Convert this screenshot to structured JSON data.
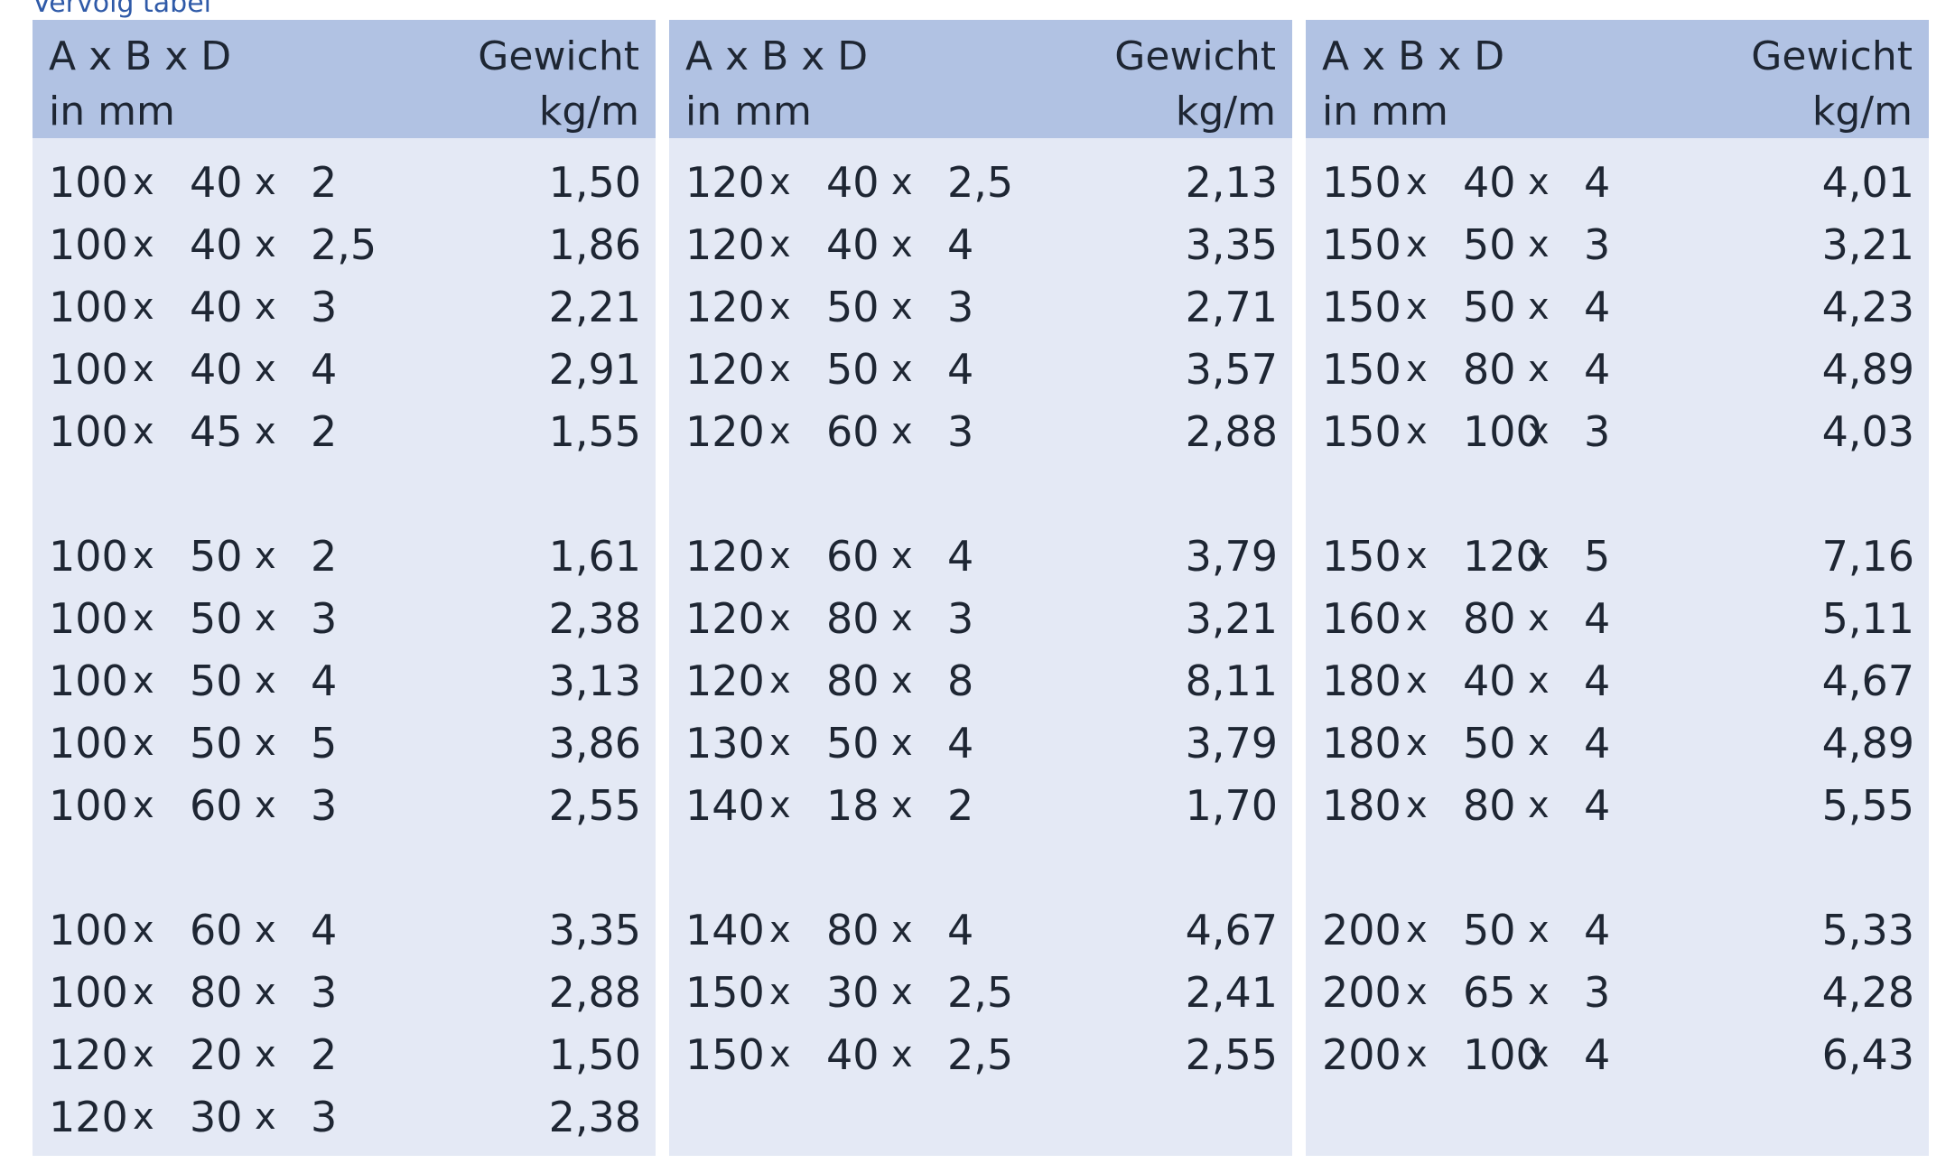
{
  "top_note": "Vervolg tabel",
  "bottom_note": "",
  "header": {
    "dim_line1": "A x B x D",
    "dim_line2": "in mm",
    "weight_line1": "Gewicht",
    "weight_line2": "kg/m"
  },
  "columns": [
    {
      "rows": [
        {
          "a": "100",
          "b": "40",
          "d": "2",
          "w": "1,50"
        },
        {
          "a": "100",
          "b": "40",
          "d": "2,5",
          "w": "1,86"
        },
        {
          "a": "100",
          "b": "40",
          "d": "3",
          "w": "2,21"
        },
        {
          "a": "100",
          "b": "40",
          "d": "4",
          "w": "2,91"
        },
        {
          "a": "100",
          "b": "45",
          "d": "2",
          "w": "1,55"
        },
        {
          "a": "100",
          "b": "50",
          "d": "2",
          "w": "1,61"
        },
        {
          "a": "100",
          "b": "50",
          "d": "3",
          "w": "2,38"
        },
        {
          "a": "100",
          "b": "50",
          "d": "4",
          "w": "3,13"
        },
        {
          "a": "100",
          "b": "50",
          "d": "5",
          "w": "3,86"
        },
        {
          "a": "100",
          "b": "60",
          "d": "3",
          "w": "2,55"
        },
        {
          "a": "100",
          "b": "60",
          "d": "4",
          "w": "3,35"
        },
        {
          "a": "100",
          "b": "80",
          "d": "3",
          "w": "2,88"
        },
        {
          "a": "120",
          "b": "20",
          "d": "2",
          "w": "1,50"
        },
        {
          "a": "120",
          "b": "30",
          "d": "3",
          "w": "2,38"
        }
      ]
    },
    {
      "rows": [
        {
          "a": "120",
          "b": "40",
          "d": "2,5",
          "w": "2,13"
        },
        {
          "a": "120",
          "b": "40",
          "d": "4",
          "w": "3,35"
        },
        {
          "a": "120",
          "b": "50",
          "d": "3",
          "w": "2,71"
        },
        {
          "a": "120",
          "b": "50",
          "d": "4",
          "w": "3,57"
        },
        {
          "a": "120",
          "b": "60",
          "d": "3",
          "w": "2,88"
        },
        {
          "a": "120",
          "b": "60",
          "d": "4",
          "w": "3,79"
        },
        {
          "a": "120",
          "b": "80",
          "d": "3",
          "w": "3,21"
        },
        {
          "a": "120",
          "b": "80",
          "d": "8",
          "w": "8,11"
        },
        {
          "a": "130",
          "b": "50",
          "d": "4",
          "w": "3,79"
        },
        {
          "a": "140",
          "b": "18",
          "d": "2",
          "w": "1,70"
        },
        {
          "a": "140",
          "b": "80",
          "d": "4",
          "w": "4,67"
        },
        {
          "a": "150",
          "b": "30",
          "d": "2,5",
          "w": "2,41"
        },
        {
          "a": "150",
          "b": "40",
          "d": "2,5",
          "w": "2,55"
        }
      ]
    },
    {
      "rows": [
        {
          "a": "150",
          "b": "40",
          "d": "4",
          "w": "4,01"
        },
        {
          "a": "150",
          "b": "50",
          "d": "3",
          "w": "3,21"
        },
        {
          "a": "150",
          "b": "50",
          "d": "4",
          "w": "4,23"
        },
        {
          "a": "150",
          "b": "80",
          "d": "4",
          "w": "4,89"
        },
        {
          "a": "150",
          "b": "100",
          "d": "3",
          "w": "4,03"
        },
        {
          "a": "150",
          "b": "120",
          "d": "5",
          "w": "7,16"
        },
        {
          "a": "160",
          "b": "80",
          "d": "4",
          "w": "5,11"
        },
        {
          "a": "180",
          "b": "40",
          "d": "4",
          "w": "4,67"
        },
        {
          "a": "180",
          "b": "50",
          "d": "4",
          "w": "4,89"
        },
        {
          "a": "180",
          "b": "80",
          "d": "4",
          "w": "5,55"
        },
        {
          "a": "200",
          "b": "50",
          "d": "4",
          "w": "5,33"
        },
        {
          "a": "200",
          "b": "65",
          "d": "3",
          "w": "4,28"
        },
        {
          "a": "200",
          "b": "100",
          "d": "4",
          "w": "6,43"
        }
      ]
    }
  ],
  "times_symbol": "x"
}
